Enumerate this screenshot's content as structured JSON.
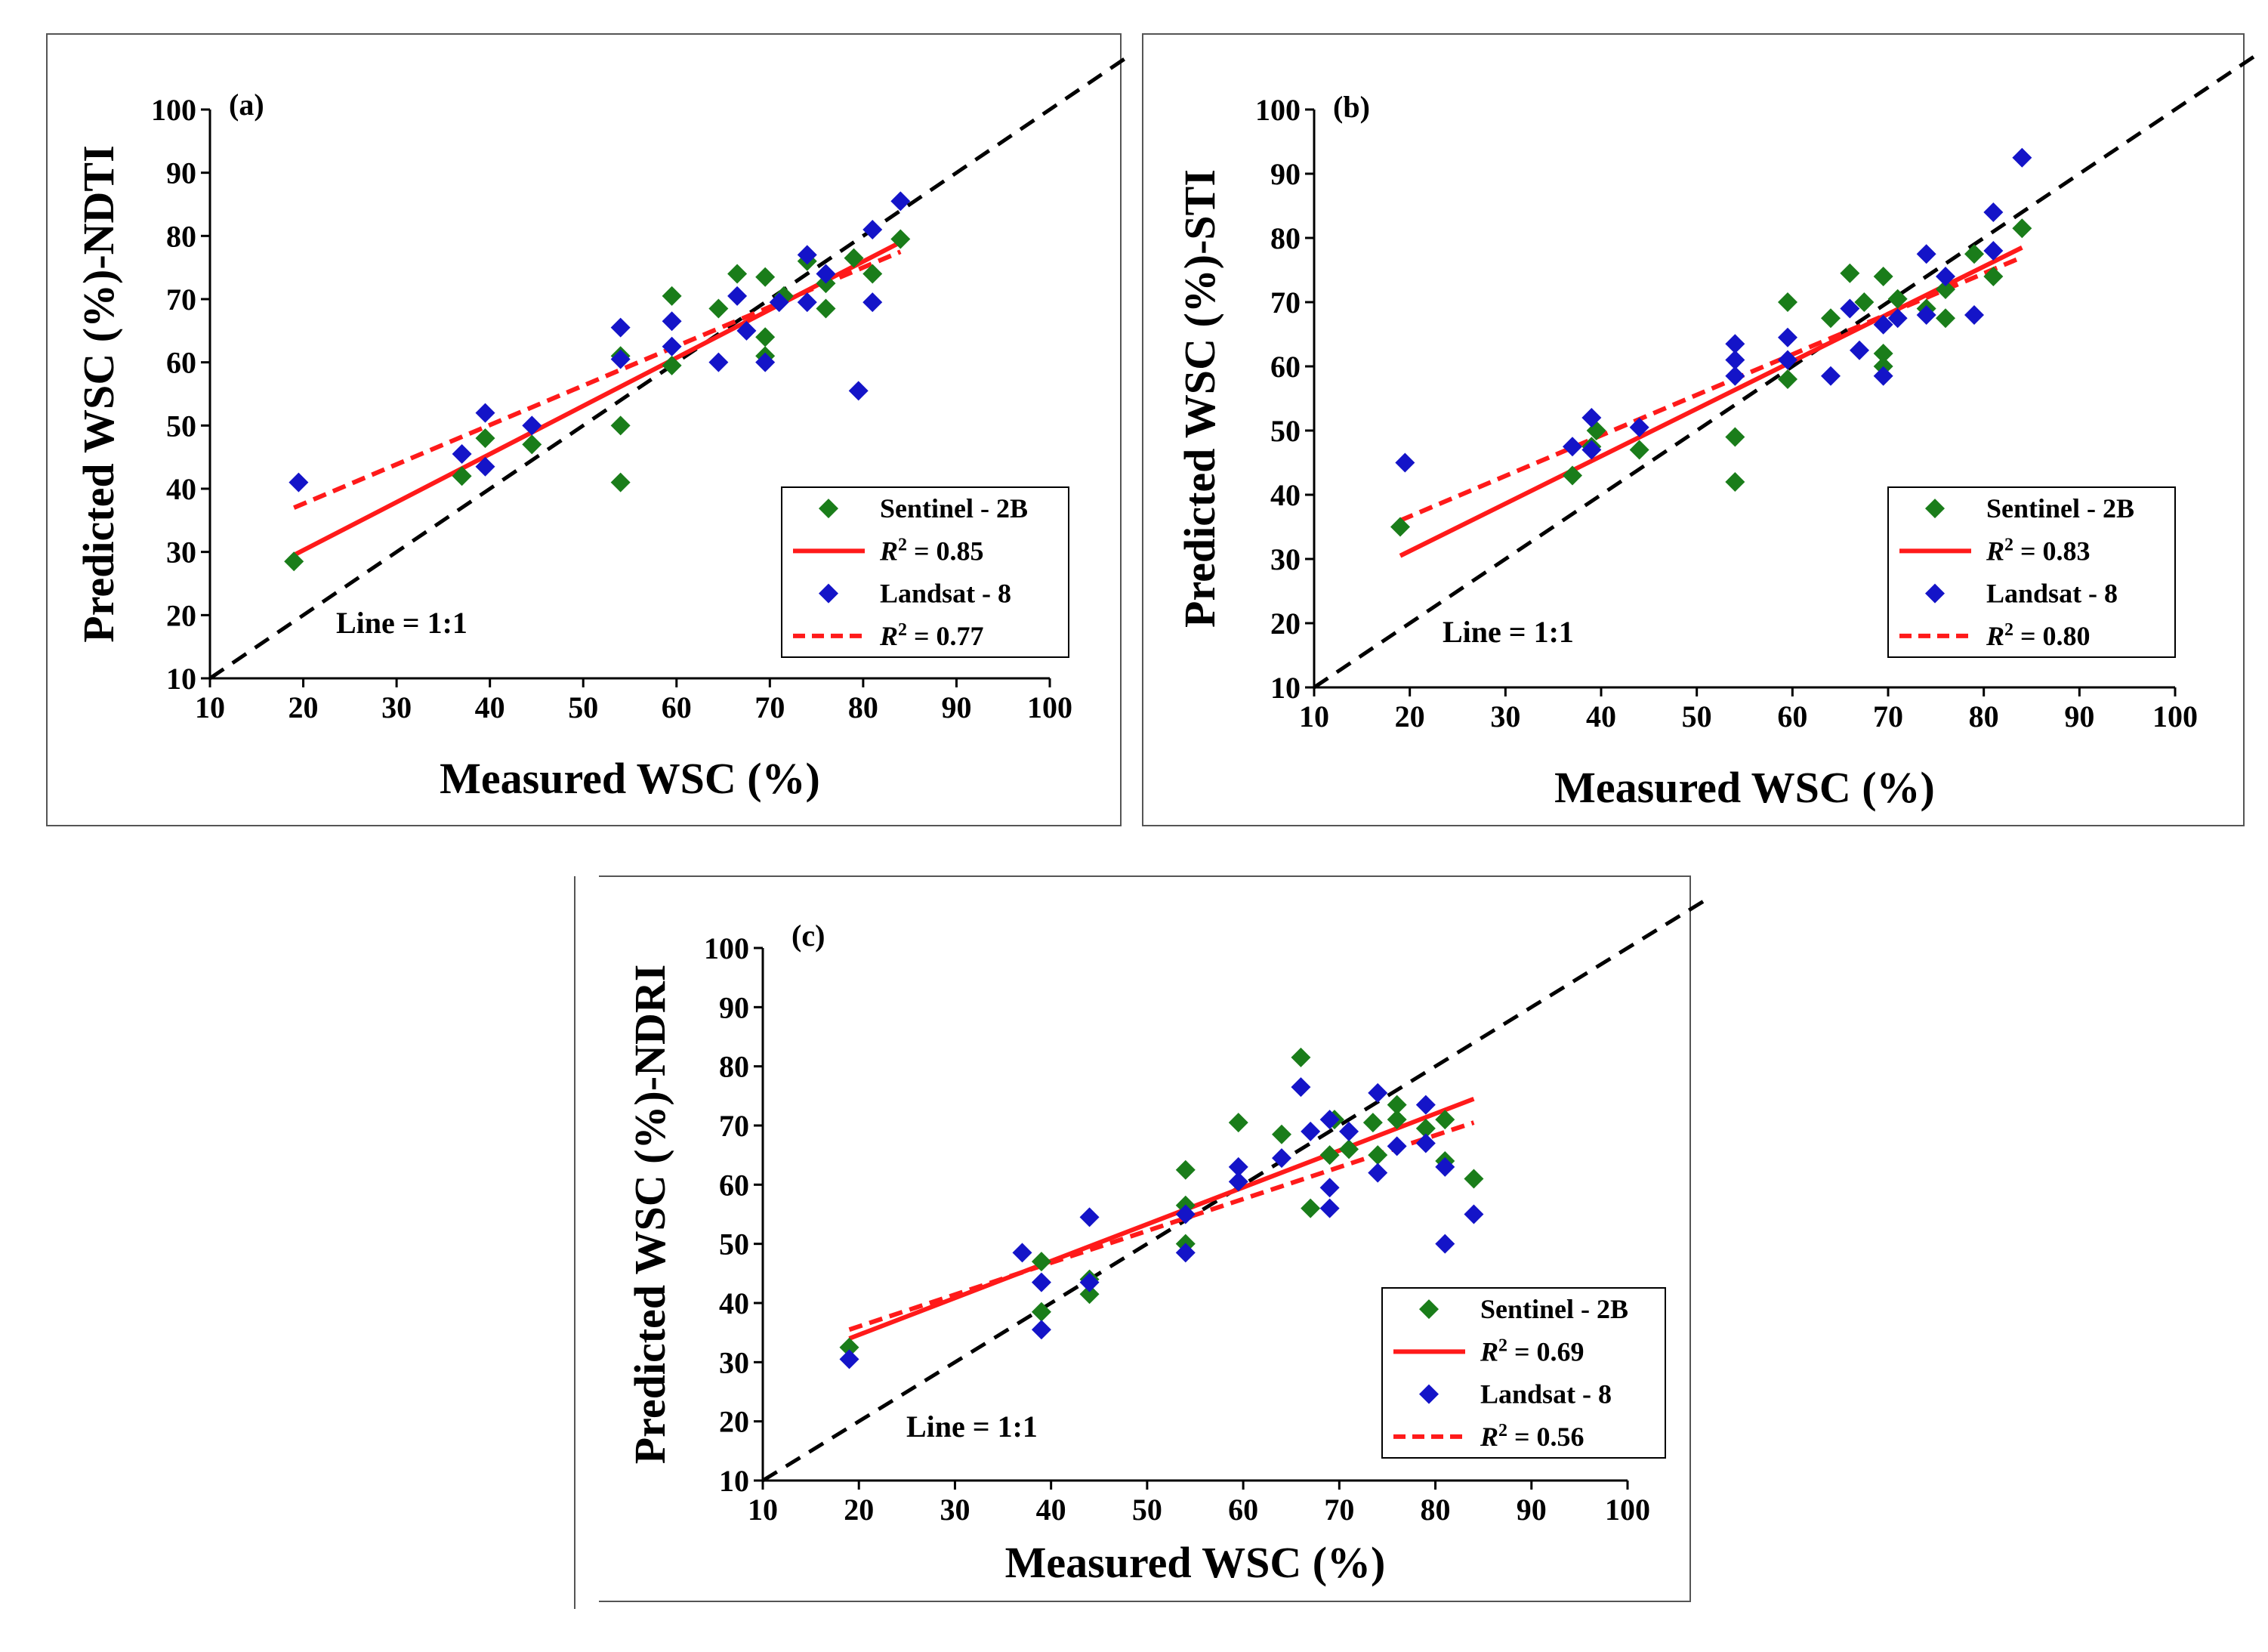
{
  "colors": {
    "sentinel": "#1a7d1a",
    "landsat": "#1414c8",
    "fit": "#ff1a1a",
    "identity": "#000000",
    "frame": "#555555"
  },
  "chart_data": [
    {
      "type": "scatter",
      "panel": "(a)",
      "xlabel": "Measured WSC (%)",
      "ylabel": "Predicted WSC (%)-NDTI",
      "xlim": [
        10,
        100
      ],
      "ylim": [
        10,
        100
      ],
      "xticks": [
        "10",
        "20",
        "30",
        "40",
        "50",
        "60",
        "70",
        "80",
        "90",
        "100"
      ],
      "yticks": [
        "10",
        "20",
        "30",
        "40",
        "50",
        "60",
        "70",
        "80",
        "90",
        "100"
      ],
      "identity_label": "Line = 1:1",
      "legend": {
        "sentinel": "Sentinel - 2B",
        "sentinel_r2": "R2 = 0.85",
        "landsat": "Landsat - 8",
        "landsat_r2": "R2 = 0.77"
      },
      "series": [
        {
          "name": "Sentinel - 2B",
          "points": [
            [
              19,
              28.5
            ],
            [
              37,
              42
            ],
            [
              39.5,
              48
            ],
            [
              44.5,
              47
            ],
            [
              54,
              50
            ],
            [
              54,
              41
            ],
            [
              54,
              61
            ],
            [
              59.5,
              59.5
            ],
            [
              59.5,
              70.5
            ],
            [
              64.5,
              68.5
            ],
            [
              66.5,
              74
            ],
            [
              69.5,
              73.5
            ],
            [
              69.5,
              64
            ],
            [
              69.5,
              61
            ],
            [
              71.5,
              70.5
            ],
            [
              74,
              76
            ],
            [
              76,
              68.5
            ],
            [
              76,
              72.5
            ],
            [
              79,
              76.5
            ],
            [
              81,
              74
            ],
            [
              84,
              79.5
            ]
          ]
        },
        {
          "name": "Landsat - 8",
          "points": [
            [
              19.5,
              41
            ],
            [
              37,
              45.5
            ],
            [
              39.5,
              52
            ],
            [
              39.5,
              43.5
            ],
            [
              44.5,
              50
            ],
            [
              54,
              65.5
            ],
            [
              54,
              60.5
            ],
            [
              59.5,
              66.5
            ],
            [
              59.5,
              62.5
            ],
            [
              64.5,
              60
            ],
            [
              66.5,
              70.5
            ],
            [
              67.5,
              65
            ],
            [
              69.5,
              60
            ],
            [
              71,
              69.5
            ],
            [
              74,
              77
            ],
            [
              74,
              69.5
            ],
            [
              76,
              74
            ],
            [
              79.5,
              55.5
            ],
            [
              81,
              81
            ],
            [
              81,
              69.5
            ],
            [
              84,
              85.5
            ]
          ]
        }
      ],
      "fits": [
        {
          "name": "Sentinel - 2B fit",
          "style": "solid",
          "x": [
            19,
            84
          ],
          "y": [
            29.5,
            79
          ]
        },
        {
          "name": "Landsat - 8 fit",
          "style": "dashed",
          "x": [
            19,
            84
          ],
          "y": [
            37,
            77.5
          ]
        }
      ]
    },
    {
      "type": "scatter",
      "panel": "(b)",
      "xlabel": "Measured WSC (%)",
      "ylabel": "Predicted WSC (%)-STI",
      "xlim": [
        10,
        100
      ],
      "ylim": [
        10,
        100
      ],
      "xticks": [
        "10",
        "20",
        "30",
        "40",
        "50",
        "60",
        "70",
        "80",
        "90",
        "100"
      ],
      "yticks": [
        "10",
        "20",
        "30",
        "40",
        "50",
        "60",
        "70",
        "80",
        "90",
        "100"
      ],
      "identity_label": "Line = 1:1",
      "legend": {
        "sentinel": "Sentinel - 2B",
        "sentinel_r2": "R2 = 0.83",
        "landsat": "Landsat - 8",
        "landsat_r2": "R2 = 0.80"
      },
      "series": [
        {
          "name": "Sentinel - 2B",
          "points": [
            [
              19,
              35
            ],
            [
              37,
              43
            ],
            [
              39,
              47.5
            ],
            [
              39.5,
              50
            ],
            [
              44,
              47
            ],
            [
              54,
              49
            ],
            [
              54,
              42
            ],
            [
              59.5,
              58
            ],
            [
              59.5,
              70
            ],
            [
              64,
              67.5
            ],
            [
              66,
              74.5
            ],
            [
              67.5,
              70
            ],
            [
              69.5,
              74
            ],
            [
              69.5,
              62
            ],
            [
              69.5,
              60
            ],
            [
              71,
              70.5
            ],
            [
              74,
              69
            ],
            [
              76,
              67.5
            ],
            [
              76,
              72
            ],
            [
              79,
              77.5
            ],
            [
              81,
              74
            ],
            [
              84,
              81.5
            ]
          ]
        },
        {
          "name": "Landsat - 8",
          "points": [
            [
              19.5,
              45
            ],
            [
              37,
              47.5
            ],
            [
              39,
              52
            ],
            [
              39,
              47
            ],
            [
              44,
              50.5
            ],
            [
              54,
              63.5
            ],
            [
              54,
              61
            ],
            [
              54,
              58.5
            ],
            [
              59.5,
              64.5
            ],
            [
              59.5,
              61
            ],
            [
              64,
              58.5
            ],
            [
              66,
              69
            ],
            [
              67,
              62.5
            ],
            [
              69.5,
              66.5
            ],
            [
              69.5,
              58.5
            ],
            [
              71,
              67.5
            ],
            [
              74,
              77.5
            ],
            [
              74,
              68
            ],
            [
              76,
              74
            ],
            [
              79,
              68
            ],
            [
              81,
              84
            ],
            [
              81,
              78
            ],
            [
              84,
              92.5
            ]
          ]
        }
      ],
      "fits": [
        {
          "name": "Sentinel - 2B fit",
          "style": "solid",
          "x": [
            19,
            84
          ],
          "y": [
            30.5,
            78.5
          ]
        },
        {
          "name": "Landsat - 8 fit",
          "style": "dashed",
          "x": [
            19,
            84
          ],
          "y": [
            36,
            77
          ]
        }
      ]
    },
    {
      "type": "scatter",
      "panel": "(c)",
      "xlabel": "Measured WSC (%)",
      "ylabel": "Predicted WSC (%)-NDRI",
      "xlim": [
        10,
        100
      ],
      "ylim": [
        10,
        100
      ],
      "xticks": [
        "10",
        "20",
        "30",
        "40",
        "50",
        "60",
        "70",
        "80",
        "90",
        "100"
      ],
      "yticks": [
        "10",
        "20",
        "30",
        "40",
        "50",
        "60",
        "70",
        "80",
        "90",
        "100"
      ],
      "identity_label": "Line = 1:1",
      "legend": {
        "sentinel": "Sentinel - 2B",
        "sentinel_r2": "R2 = 0.69",
        "landsat": "Landsat - 8",
        "landsat_r2": "R2 = 0.56"
      },
      "series": [
        {
          "name": "Sentinel - 2B",
          "points": [
            [
              19,
              32.5
            ],
            [
              39,
              47
            ],
            [
              39,
              38.5
            ],
            [
              44,
              44
            ],
            [
              44,
              41.5
            ],
            [
              54,
              62.5
            ],
            [
              54,
              56.5
            ],
            [
              54,
              50
            ],
            [
              59.5,
              70.5
            ],
            [
              64,
              68.5
            ],
            [
              66,
              81.5
            ],
            [
              67,
              56
            ],
            [
              69,
              65
            ],
            [
              69.5,
              71
            ],
            [
              71,
              66
            ],
            [
              73.5,
              70.5
            ],
            [
              74,
              65
            ],
            [
              76,
              73.5
            ],
            [
              76,
              71
            ],
            [
              79,
              69.5
            ],
            [
              81,
              64
            ],
            [
              81,
              71
            ],
            [
              84,
              61
            ]
          ]
        },
        {
          "name": "Landsat - 8",
          "points": [
            [
              19,
              30.5
            ],
            [
              37,
              48.5
            ],
            [
              39,
              43.5
            ],
            [
              39,
              35.5
            ],
            [
              44,
              54.5
            ],
            [
              44,
              43.5
            ],
            [
              54,
              55
            ],
            [
              54,
              48.5
            ],
            [
              59.5,
              63
            ],
            [
              59.5,
              60.5
            ],
            [
              64,
              64.5
            ],
            [
              66,
              76.5
            ],
            [
              67,
              69
            ],
            [
              69,
              71
            ],
            [
              69,
              59.5
            ],
            [
              69,
              56
            ],
            [
              71,
              69
            ],
            [
              74,
              75.5
            ],
            [
              74,
              62
            ],
            [
              76,
              66.5
            ],
            [
              79,
              73.5
            ],
            [
              79,
              67
            ],
            [
              81,
              63
            ],
            [
              81,
              50
            ],
            [
              84,
              55
            ]
          ]
        }
      ],
      "fits": [
        {
          "name": "Sentinel - 2B fit",
          "style": "solid",
          "x": [
            19,
            84
          ],
          "y": [
            34,
            74.5
          ]
        },
        {
          "name": "Landsat - 8 fit",
          "style": "dashed",
          "x": [
            19,
            84
          ],
          "y": [
            35.5,
            70.5
          ]
        }
      ]
    }
  ]
}
